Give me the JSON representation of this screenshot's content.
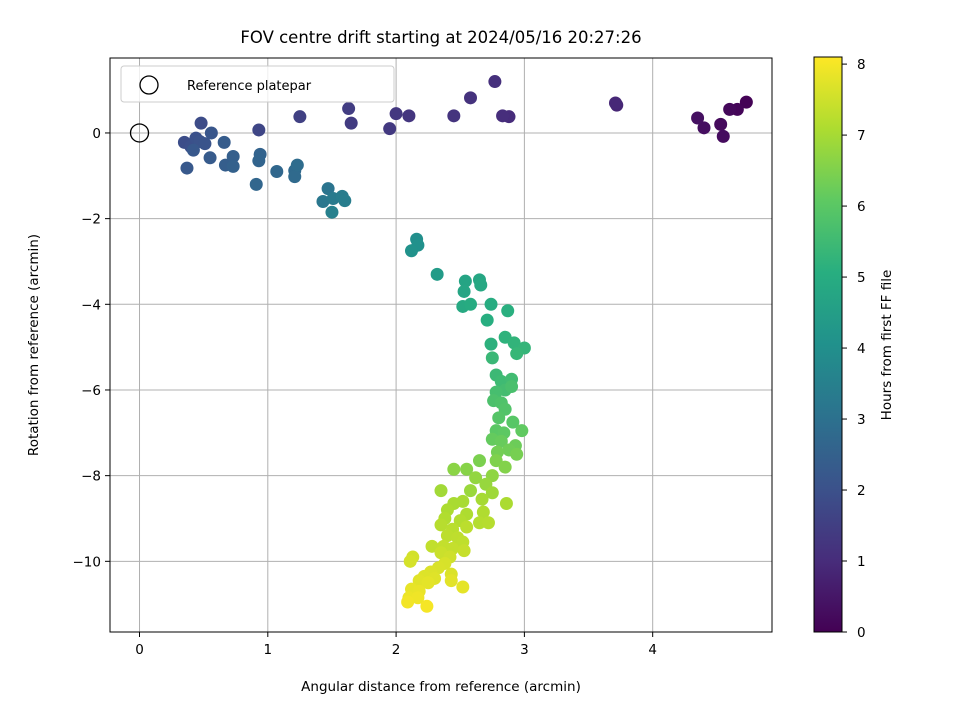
{
  "chart_data": {
    "type": "scatter",
    "title": "FOV centre drift starting at 2024/05/16 20:27:26",
    "xlabel": "Angular distance from reference (arcmin)",
    "ylabel": "Rotation from reference (arcmin)",
    "xlim": [
      -0.23,
      4.93
    ],
    "ylim": [
      -11.65,
      1.75
    ],
    "xticks": [
      0,
      1,
      2,
      3,
      4
    ],
    "yticks": [
      0,
      -2,
      -4,
      -6,
      -8,
      -10
    ],
    "grid": true,
    "legend": {
      "placement": "upper left",
      "entries": [
        "Reference platepar"
      ]
    },
    "reference_point": {
      "x": 0,
      "y": 0
    },
    "colorbar": {
      "label": "Hours from first FF file",
      "range": [
        0,
        8.1
      ],
      "ticks": [
        0,
        1,
        2,
        3,
        4,
        5,
        6,
        7,
        8
      ],
      "colormap": "viridis"
    },
    "points": [
      {
        "x": 4.73,
        "y": 0.72,
        "h": 0.05
      },
      {
        "x": 4.66,
        "y": 0.55,
        "h": 0.1
      },
      {
        "x": 4.6,
        "y": 0.55,
        "h": 0.15
      },
      {
        "x": 4.53,
        "y": 0.2,
        "h": 0.2
      },
      {
        "x": 4.55,
        "y": -0.08,
        "h": 0.25
      },
      {
        "x": 4.4,
        "y": 0.12,
        "h": 0.3
      },
      {
        "x": 4.35,
        "y": 0.35,
        "h": 0.35
      },
      {
        "x": 3.72,
        "y": 0.65,
        "h": 0.85
      },
      {
        "x": 3.71,
        "y": 0.7,
        "h": 0.9
      },
      {
        "x": 2.88,
        "y": 0.38,
        "h": 1.0
      },
      {
        "x": 2.83,
        "y": 0.4,
        "h": 1.05
      },
      {
        "x": 2.77,
        "y": 1.2,
        "h": 1.1
      },
      {
        "x": 2.58,
        "y": 0.82,
        "h": 1.15
      },
      {
        "x": 2.45,
        "y": 0.4,
        "h": 1.2
      },
      {
        "x": 2.1,
        "y": 0.4,
        "h": 1.25
      },
      {
        "x": 2.0,
        "y": 0.45,
        "h": 1.3
      },
      {
        "x": 1.95,
        "y": 0.1,
        "h": 1.35
      },
      {
        "x": 1.65,
        "y": 0.23,
        "h": 1.4
      },
      {
        "x": 1.63,
        "y": 0.57,
        "h": 1.45
      },
      {
        "x": 1.25,
        "y": 0.38,
        "h": 1.55
      },
      {
        "x": 0.93,
        "y": 0.07,
        "h": 1.7
      },
      {
        "x": 0.48,
        "y": 0.23,
        "h": 1.85
      },
      {
        "x": 0.35,
        "y": -0.22,
        "h": 1.9
      },
      {
        "x": 0.4,
        "y": -0.32,
        "h": 1.95
      },
      {
        "x": 0.44,
        "y": -0.12,
        "h": 2.0
      },
      {
        "x": 0.47,
        "y": -0.2,
        "h": 2.05
      },
      {
        "x": 0.51,
        "y": -0.25,
        "h": 2.1
      },
      {
        "x": 0.56,
        "y": 0.0,
        "h": 2.15
      },
      {
        "x": 0.42,
        "y": -0.4,
        "h": 2.2
      },
      {
        "x": 0.37,
        "y": -0.82,
        "h": 2.25
      },
      {
        "x": 0.55,
        "y": -0.58,
        "h": 2.3
      },
      {
        "x": 0.66,
        "y": -0.22,
        "h": 2.35
      },
      {
        "x": 0.67,
        "y": -0.75,
        "h": 2.4
      },
      {
        "x": 0.73,
        "y": -0.55,
        "h": 2.45
      },
      {
        "x": 0.73,
        "y": -0.78,
        "h": 2.5
      },
      {
        "x": 0.94,
        "y": -0.5,
        "h": 2.55
      },
      {
        "x": 0.93,
        "y": -0.65,
        "h": 2.6
      },
      {
        "x": 0.91,
        "y": -1.2,
        "h": 2.65
      },
      {
        "x": 1.07,
        "y": -0.9,
        "h": 2.7
      },
      {
        "x": 1.21,
        "y": -0.88,
        "h": 2.75
      },
      {
        "x": 1.21,
        "y": -1.02,
        "h": 2.8
      },
      {
        "x": 1.23,
        "y": -0.75,
        "h": 2.85
      },
      {
        "x": 1.47,
        "y": -1.3,
        "h": 3.1
      },
      {
        "x": 1.43,
        "y": -1.6,
        "h": 3.2
      },
      {
        "x": 1.51,
        "y": -1.53,
        "h": 3.3
      },
      {
        "x": 1.58,
        "y": -1.48,
        "h": 3.35
      },
      {
        "x": 1.6,
        "y": -1.58,
        "h": 3.4
      },
      {
        "x": 1.5,
        "y": -1.85,
        "h": 3.5
      },
      {
        "x": 2.16,
        "y": -2.48,
        "h": 4.0
      },
      {
        "x": 2.17,
        "y": -2.62,
        "h": 4.05
      },
      {
        "x": 2.12,
        "y": -2.75,
        "h": 4.1
      },
      {
        "x": 2.32,
        "y": -3.3,
        "h": 4.4
      },
      {
        "x": 2.54,
        "y": -3.46,
        "h": 4.7
      },
      {
        "x": 2.53,
        "y": -3.7,
        "h": 4.75
      },
      {
        "x": 2.65,
        "y": -3.43,
        "h": 4.8
      },
      {
        "x": 2.66,
        "y": -3.55,
        "h": 4.85
      },
      {
        "x": 2.52,
        "y": -4.05,
        "h": 4.9
      },
      {
        "x": 2.58,
        "y": -4.0,
        "h": 4.95
      },
      {
        "x": 2.74,
        "y": -4.0,
        "h": 5.0
      },
      {
        "x": 2.71,
        "y": -4.37,
        "h": 5.05
      },
      {
        "x": 2.87,
        "y": -4.15,
        "h": 5.1
      },
      {
        "x": 2.74,
        "y": -4.93,
        "h": 5.15
      },
      {
        "x": 2.85,
        "y": -4.77,
        "h": 5.2
      },
      {
        "x": 2.92,
        "y": -4.9,
        "h": 5.25
      },
      {
        "x": 3.0,
        "y": -5.02,
        "h": 5.3
      },
      {
        "x": 2.94,
        "y": -5.15,
        "h": 5.35
      },
      {
        "x": 2.75,
        "y": -5.25,
        "h": 5.4
      },
      {
        "x": 2.78,
        "y": -5.65,
        "h": 5.45
      },
      {
        "x": 2.82,
        "y": -5.8,
        "h": 5.5
      },
      {
        "x": 2.9,
        "y": -5.75,
        "h": 5.55
      },
      {
        "x": 2.85,
        "y": -6.0,
        "h": 5.6
      },
      {
        "x": 2.78,
        "y": -6.05,
        "h": 5.65
      },
      {
        "x": 2.9,
        "y": -5.92,
        "h": 5.7
      },
      {
        "x": 2.76,
        "y": -6.25,
        "h": 5.75
      },
      {
        "x": 2.82,
        "y": -6.3,
        "h": 5.8
      },
      {
        "x": 2.85,
        "y": -6.45,
        "h": 5.85
      },
      {
        "x": 2.8,
        "y": -6.65,
        "h": 5.9
      },
      {
        "x": 2.91,
        "y": -6.75,
        "h": 5.95
      },
      {
        "x": 2.78,
        "y": -6.95,
        "h": 6.0
      },
      {
        "x": 2.84,
        "y": -7.0,
        "h": 6.05
      },
      {
        "x": 2.98,
        "y": -6.95,
        "h": 6.1
      },
      {
        "x": 2.75,
        "y": -7.15,
        "h": 6.15
      },
      {
        "x": 2.82,
        "y": -7.2,
        "h": 6.2
      },
      {
        "x": 2.93,
        "y": -7.3,
        "h": 6.25
      },
      {
        "x": 2.88,
        "y": -7.4,
        "h": 6.3
      },
      {
        "x": 2.79,
        "y": -7.45,
        "h": 6.35
      },
      {
        "x": 2.94,
        "y": -7.5,
        "h": 6.4
      },
      {
        "x": 2.65,
        "y": -7.65,
        "h": 6.45
      },
      {
        "x": 2.78,
        "y": -7.65,
        "h": 6.5
      },
      {
        "x": 2.85,
        "y": -7.8,
        "h": 6.55
      },
      {
        "x": 2.55,
        "y": -7.85,
        "h": 6.6
      },
      {
        "x": 2.45,
        "y": -7.85,
        "h": 6.65
      },
      {
        "x": 2.75,
        "y": -8.0,
        "h": 6.7
      },
      {
        "x": 2.62,
        "y": -8.05,
        "h": 6.75
      },
      {
        "x": 2.7,
        "y": -8.2,
        "h": 6.8
      },
      {
        "x": 2.58,
        "y": -8.35,
        "h": 6.85
      },
      {
        "x": 2.75,
        "y": -8.4,
        "h": 6.9
      },
      {
        "x": 2.35,
        "y": -8.35,
        "h": 6.95
      },
      {
        "x": 2.67,
        "y": -8.55,
        "h": 7.0
      },
      {
        "x": 2.52,
        "y": -8.6,
        "h": 7.02
      },
      {
        "x": 2.45,
        "y": -8.65,
        "h": 7.04
      },
      {
        "x": 2.86,
        "y": -8.65,
        "h": 7.06
      },
      {
        "x": 2.4,
        "y": -8.8,
        "h": 7.08
      },
      {
        "x": 2.55,
        "y": -8.9,
        "h": 7.1
      },
      {
        "x": 2.68,
        "y": -8.85,
        "h": 7.12
      },
      {
        "x": 2.38,
        "y": -9.0,
        "h": 7.14
      },
      {
        "x": 2.5,
        "y": -9.05,
        "h": 7.16
      },
      {
        "x": 2.65,
        "y": -9.1,
        "h": 7.18
      },
      {
        "x": 2.72,
        "y": -9.1,
        "h": 7.2
      },
      {
        "x": 2.35,
        "y": -9.15,
        "h": 7.22
      },
      {
        "x": 2.44,
        "y": -9.25,
        "h": 7.24
      },
      {
        "x": 2.55,
        "y": -9.2,
        "h": 7.26
      },
      {
        "x": 2.4,
        "y": -9.4,
        "h": 7.28
      },
      {
        "x": 2.48,
        "y": -9.45,
        "h": 7.3
      },
      {
        "x": 2.52,
        "y": -9.55,
        "h": 7.32
      },
      {
        "x": 2.28,
        "y": -9.65,
        "h": 7.34
      },
      {
        "x": 2.37,
        "y": -9.65,
        "h": 7.36
      },
      {
        "x": 2.44,
        "y": -9.7,
        "h": 7.38
      },
      {
        "x": 2.53,
        "y": -9.75,
        "h": 7.4
      },
      {
        "x": 2.35,
        "y": -9.8,
        "h": 7.45
      },
      {
        "x": 2.42,
        "y": -9.9,
        "h": 7.5
      },
      {
        "x": 2.13,
        "y": -9.9,
        "h": 7.55
      },
      {
        "x": 2.11,
        "y": -10.0,
        "h": 7.6
      },
      {
        "x": 2.38,
        "y": -10.05,
        "h": 7.62
      },
      {
        "x": 2.33,
        "y": -10.15,
        "h": 7.64
      },
      {
        "x": 2.43,
        "y": -10.3,
        "h": 7.66
      },
      {
        "x": 2.27,
        "y": -10.25,
        "h": 7.68
      },
      {
        "x": 2.22,
        "y": -10.35,
        "h": 7.7
      },
      {
        "x": 2.3,
        "y": -10.4,
        "h": 7.72
      },
      {
        "x": 2.18,
        "y": -10.45,
        "h": 7.74
      },
      {
        "x": 2.43,
        "y": -10.45,
        "h": 7.76
      },
      {
        "x": 2.25,
        "y": -10.5,
        "h": 7.78
      },
      {
        "x": 2.52,
        "y": -10.6,
        "h": 7.8
      },
      {
        "x": 2.12,
        "y": -10.65,
        "h": 7.82
      },
      {
        "x": 2.18,
        "y": -10.7,
        "h": 7.85
      },
      {
        "x": 2.1,
        "y": -10.85,
        "h": 7.88
      },
      {
        "x": 2.17,
        "y": -10.85,
        "h": 7.92
      },
      {
        "x": 2.09,
        "y": -10.95,
        "h": 7.96
      },
      {
        "x": 2.24,
        "y": -11.05,
        "h": 8.0
      }
    ]
  }
}
